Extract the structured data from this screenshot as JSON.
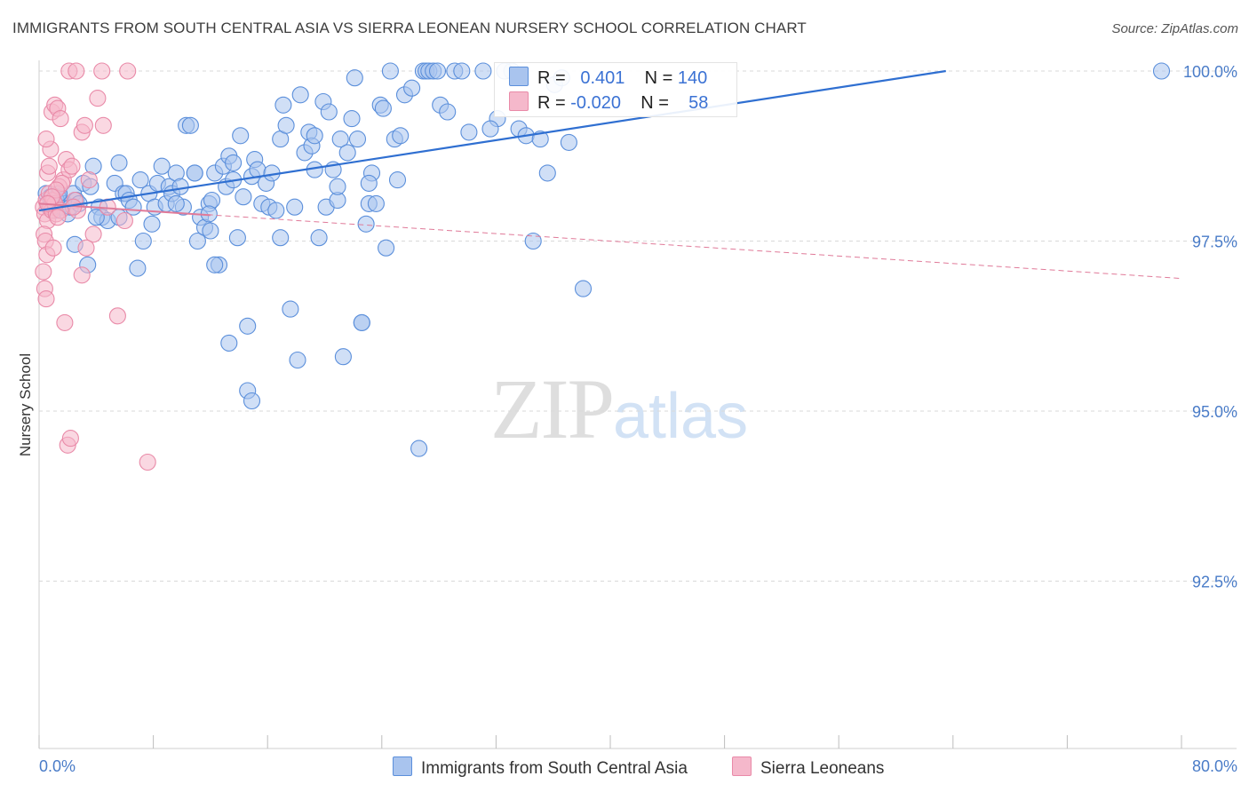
{
  "title": "IMMIGRANTS FROM SOUTH CENTRAL ASIA VS SIERRA LEONEAN NURSERY SCHOOL CORRELATION CHART",
  "source": "Source: ZipAtlas.com",
  "watermark": {
    "zip": "ZIP",
    "atlas": "atlas"
  },
  "legend_top": {
    "rows": [
      {
        "r_label": "R =",
        "r_value": "0.401",
        "n_label": "N =",
        "n_value": "140"
      },
      {
        "r_label": "R =",
        "r_value": "-0.020",
        "n_label": "N =",
        "n_value": "58"
      }
    ]
  },
  "legend_bottom": [
    "Immigrants from South Central Asia",
    "Sierra Leoneans"
  ],
  "colors": {
    "blue_fill": "#a9c4ee",
    "blue_stroke": "#5b8fdb",
    "blue_line": "#2f6fd1",
    "pink_fill": "#f5b8cb",
    "pink_stroke": "#e98aa8",
    "pink_line": "#e07a99",
    "axis_text": "#4a7cc8",
    "grid": "#d9d9d9"
  },
  "chart_data": {
    "type": "scatter",
    "title": "IMMIGRANTS FROM SOUTH CENTRAL ASIA VS SIERRA LEONEAN NURSERY SCHOOL CORRELATION CHART",
    "xlabel": "",
    "ylabel": "Nursery School",
    "xlim": [
      0,
      80
    ],
    "ylim": [
      90.5,
      100.4
    ],
    "x_tick_labels": [
      "0.0%",
      "80.0%"
    ],
    "y_ticks": [
      92.5,
      95.0,
      97.5,
      100.0
    ],
    "y_tick_labels": [
      "92.5%",
      "95.0%",
      "97.5%",
      "100.0%"
    ],
    "grid": true,
    "series": [
      {
        "name": "Immigrants from South Central Asia",
        "R": 0.401,
        "N": 140,
        "trend": {
          "x": [
            0,
            63.5
          ],
          "y": [
            97.95,
            100.0
          ]
        },
        "points": [
          [
            0.5,
            98.2
          ],
          [
            0.7,
            98.0
          ],
          [
            0.9,
            98.1
          ],
          [
            1.0,
            98.0
          ],
          [
            1.1,
            97.95
          ],
          [
            1.3,
            98.15
          ],
          [
            1.5,
            98.1
          ],
          [
            1.6,
            98.0
          ],
          [
            1.8,
            98.05
          ],
          [
            2.0,
            97.9
          ],
          [
            2.2,
            98.0
          ],
          [
            2.4,
            98.2
          ],
          [
            2.6,
            98.1
          ],
          [
            2.8,
            98.05
          ],
          [
            1.2,
            98.1
          ],
          [
            0.8,
            98.15
          ],
          [
            1.4,
            98.2
          ],
          [
            2.5,
            97.45
          ],
          [
            3.4,
            97.15
          ],
          [
            3.1,
            98.35
          ],
          [
            3.6,
            98.3
          ],
          [
            3.8,
            98.6
          ],
          [
            4.2,
            98.0
          ],
          [
            4.4,
            97.85
          ],
          [
            4.8,
            97.8
          ],
          [
            5.3,
            98.35
          ],
          [
            5.6,
            98.65
          ],
          [
            5.9,
            98.2
          ],
          [
            6.1,
            98.2
          ],
          [
            6.3,
            98.1
          ],
          [
            6.6,
            98.0
          ],
          [
            6.9,
            97.1
          ],
          [
            7.1,
            98.4
          ],
          [
            7.3,
            97.5
          ],
          [
            7.7,
            98.2
          ],
          [
            7.9,
            97.75
          ],
          [
            8.1,
            98.0
          ],
          [
            8.3,
            98.35
          ],
          [
            8.6,
            98.6
          ],
          [
            8.9,
            98.05
          ],
          [
            9.1,
            98.3
          ],
          [
            9.3,
            98.2
          ],
          [
            9.6,
            98.5
          ],
          [
            9.9,
            98.3
          ],
          [
            10.1,
            98.0
          ],
          [
            10.3,
            99.2
          ],
          [
            10.6,
            99.2
          ],
          [
            10.9,
            98.5
          ],
          [
            11.1,
            97.5
          ],
          [
            11.3,
            97.85
          ],
          [
            11.6,
            97.7
          ],
          [
            11.9,
            98.05
          ],
          [
            12.1,
            98.1
          ],
          [
            12.3,
            98.5
          ],
          [
            12.6,
            97.15
          ],
          [
            12.9,
            98.6
          ],
          [
            13.1,
            98.3
          ],
          [
            13.3,
            98.75
          ],
          [
            13.6,
            98.4
          ],
          [
            13.9,
            97.55
          ],
          [
            14.1,
            99.05
          ],
          [
            14.3,
            98.15
          ],
          [
            14.6,
            96.25
          ],
          [
            14.9,
            98.45
          ],
          [
            15.1,
            98.7
          ],
          [
            15.3,
            98.55
          ],
          [
            15.6,
            98.05
          ],
          [
            15.9,
            98.35
          ],
          [
            16.1,
            98.0
          ],
          [
            16.3,
            98.5
          ],
          [
            16.6,
            97.95
          ],
          [
            16.9,
            99.0
          ],
          [
            17.1,
            99.5
          ],
          [
            17.3,
            99.2
          ],
          [
            17.6,
            96.5
          ],
          [
            17.9,
            98.0
          ],
          [
            18.1,
            95.75
          ],
          [
            18.3,
            99.65
          ],
          [
            18.6,
            98.8
          ],
          [
            18.9,
            99.1
          ],
          [
            19.1,
            98.9
          ],
          [
            19.3,
            99.05
          ],
          [
            19.6,
            97.55
          ],
          [
            19.9,
            99.55
          ],
          [
            20.1,
            98.0
          ],
          [
            20.3,
            99.4
          ],
          [
            20.6,
            98.55
          ],
          [
            20.9,
            98.1
          ],
          [
            21.1,
            99.0
          ],
          [
            21.3,
            95.8
          ],
          [
            21.6,
            98.8
          ],
          [
            21.9,
            99.3
          ],
          [
            22.1,
            99.9
          ],
          [
            22.3,
            99.0
          ],
          [
            22.6,
            96.3
          ],
          [
            22.9,
            97.75
          ],
          [
            23.1,
            98.05
          ],
          [
            23.3,
            98.5
          ],
          [
            23.6,
            98.05
          ],
          [
            23.9,
            99.5
          ],
          [
            24.1,
            99.45
          ],
          [
            24.3,
            97.4
          ],
          [
            24.6,
            100.0
          ],
          [
            24.9,
            99.0
          ],
          [
            25.1,
            98.4
          ],
          [
            25.3,
            99.05
          ],
          [
            25.6,
            99.65
          ],
          [
            26.1,
            99.75
          ],
          [
            26.6,
            94.45
          ],
          [
            26.9,
            100.0
          ],
          [
            27.1,
            100.0
          ],
          [
            27.3,
            100.0
          ],
          [
            27.6,
            100.0
          ],
          [
            27.9,
            100.0
          ],
          [
            28.1,
            99.5
          ],
          [
            28.6,
            99.4
          ],
          [
            29.1,
            100.0
          ],
          [
            30.1,
            99.1
          ],
          [
            31.1,
            100.0
          ],
          [
            32.1,
            99.3
          ],
          [
            33.1,
            100.0
          ],
          [
            33.6,
            99.15
          ],
          [
            34.1,
            99.05
          ],
          [
            34.6,
            97.5
          ],
          [
            35.1,
            99.0
          ],
          [
            35.6,
            98.5
          ],
          [
            36.1,
            99.8
          ],
          [
            37.1,
            98.95
          ],
          [
            38.1,
            96.8
          ],
          [
            78.6,
            100.0
          ],
          [
            14.6,
            95.3
          ],
          [
            14.9,
            95.15
          ],
          [
            13.3,
            96.0
          ],
          [
            22.6,
            96.3
          ],
          [
            12.3,
            97.15
          ],
          [
            5.6,
            97.85
          ],
          [
            9.6,
            98.05
          ],
          [
            11.9,
            97.9
          ],
          [
            10.9,
            98.5
          ],
          [
            4.0,
            97.85
          ],
          [
            12.0,
            97.65
          ],
          [
            13.6,
            98.65
          ],
          [
            16.9,
            97.55
          ],
          [
            19.3,
            98.55
          ],
          [
            20.9,
            98.3
          ],
          [
            23.1,
            98.35
          ],
          [
            29.6,
            100.0
          ],
          [
            32.6,
            100.0
          ],
          [
            36.6,
            99.9
          ],
          [
            31.6,
            99.15
          ]
        ]
      },
      {
        "name": "Sierra Leoneans",
        "R": -0.02,
        "N": 58,
        "trend": {
          "x": [
            0,
            80
          ],
          "y": [
            98.05,
            96.95
          ]
        },
        "points": [
          [
            0.3,
            98.0
          ],
          [
            0.4,
            97.9
          ],
          [
            0.5,
            98.1
          ],
          [
            0.6,
            97.8
          ],
          [
            0.7,
            98.2
          ],
          [
            0.8,
            98.0
          ],
          [
            0.9,
            97.95
          ],
          [
            1.0,
            98.1
          ],
          [
            1.1,
            98.05
          ],
          [
            1.2,
            97.9
          ],
          [
            0.35,
            97.6
          ],
          [
            0.45,
            97.5
          ],
          [
            0.55,
            97.3
          ],
          [
            0.3,
            97.05
          ],
          [
            0.4,
            96.8
          ],
          [
            0.5,
            96.65
          ],
          [
            0.6,
            98.5
          ],
          [
            0.7,
            98.6
          ],
          [
            0.8,
            98.85
          ],
          [
            0.5,
            99.0
          ],
          [
            0.9,
            99.4
          ],
          [
            1.1,
            99.5
          ],
          [
            1.3,
            99.45
          ],
          [
            1.5,
            99.3
          ],
          [
            1.7,
            98.4
          ],
          [
            1.9,
            98.7
          ],
          [
            2.1,
            98.55
          ],
          [
            2.3,
            98.6
          ],
          [
            1.4,
            98.3
          ],
          [
            1.6,
            98.35
          ],
          [
            2.5,
            98.1
          ],
          [
            2.7,
            97.95
          ],
          [
            3.0,
            99.1
          ],
          [
            3.2,
            99.2
          ],
          [
            3.5,
            98.4
          ],
          [
            3.8,
            97.6
          ],
          [
            4.1,
            99.6
          ],
          [
            4.5,
            99.2
          ],
          [
            1.8,
            96.3
          ],
          [
            2.0,
            94.5
          ],
          [
            2.2,
            94.6
          ],
          [
            5.5,
            96.4
          ],
          [
            6.0,
            97.8
          ],
          [
            7.6,
            94.25
          ],
          [
            2.1,
            100.0
          ],
          [
            2.6,
            100.0
          ],
          [
            4.4,
            100.0
          ],
          [
            6.2,
            100.0
          ],
          [
            3.0,
            97.0
          ],
          [
            1.0,
            97.4
          ],
          [
            1.2,
            98.25
          ],
          [
            0.9,
            98.15
          ],
          [
            2.4,
            98.0
          ],
          [
            1.5,
            97.95
          ],
          [
            0.6,
            98.05
          ],
          [
            1.3,
            97.85
          ],
          [
            3.3,
            97.4
          ],
          [
            4.8,
            98.0
          ]
        ]
      }
    ]
  }
}
